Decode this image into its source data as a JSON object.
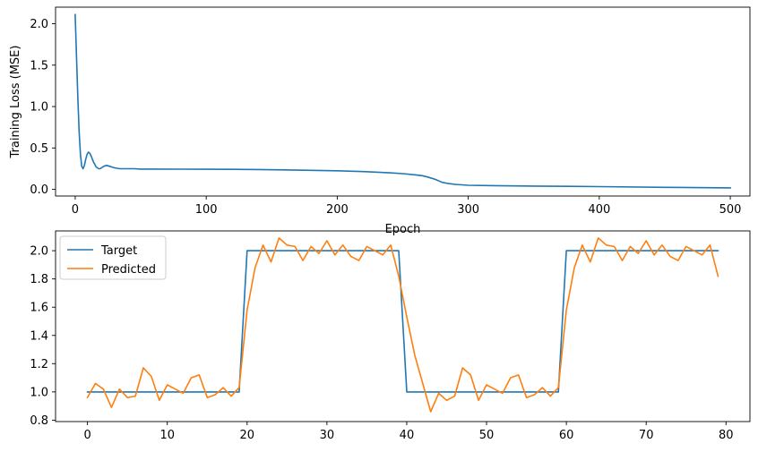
{
  "chart_data": [
    {
      "type": "line",
      "title": "",
      "xlabel": "Epoch",
      "ylabel": "Training Loss (MSE)",
      "xlim": [
        -15,
        515
      ],
      "ylim": [
        -0.08,
        2.2
      ],
      "xticks": [
        0,
        100,
        200,
        300,
        400,
        500
      ],
      "yticks": [
        0.0,
        0.5,
        1.0,
        1.5,
        2.0
      ],
      "xtick_labels": [
        "0",
        "100",
        "200",
        "300",
        "400",
        "500"
      ],
      "ytick_labels": [
        "0.0",
        "0.5",
        "1.0",
        "1.5",
        "2.0"
      ],
      "grid": false,
      "colors": [
        "#1f77b4"
      ],
      "series": [
        {
          "x": [
            0,
            1,
            2,
            3,
            4,
            5,
            6,
            7,
            8,
            9,
            10,
            11,
            12,
            13,
            14,
            15,
            16,
            17,
            18,
            19,
            20,
            22,
            24,
            26,
            28,
            30,
            32,
            34,
            36,
            38,
            40,
            45,
            50,
            60,
            80,
            100,
            120,
            140,
            160,
            180,
            200,
            220,
            240,
            250,
            260,
            265,
            270,
            275,
            280,
            285,
            290,
            300,
            320,
            350,
            400,
            450,
            500
          ],
          "values": [
            2.11,
            1.6,
            1.1,
            0.7,
            0.42,
            0.28,
            0.25,
            0.29,
            0.36,
            0.42,
            0.45,
            0.44,
            0.41,
            0.37,
            0.33,
            0.3,
            0.27,
            0.26,
            0.25,
            0.25,
            0.26,
            0.28,
            0.29,
            0.28,
            0.27,
            0.26,
            0.255,
            0.25,
            0.25,
            0.25,
            0.25,
            0.25,
            0.245,
            0.245,
            0.244,
            0.243,
            0.242,
            0.24,
            0.235,
            0.23,
            0.225,
            0.215,
            0.2,
            0.19,
            0.175,
            0.165,
            0.145,
            0.12,
            0.085,
            0.07,
            0.06,
            0.05,
            0.045,
            0.04,
            0.033,
            0.025,
            0.018
          ]
        }
      ]
    },
    {
      "type": "line",
      "title": "",
      "xlabel": "",
      "ylabel": "",
      "xlim": [
        -4,
        83
      ],
      "ylim": [
        0.79,
        2.14
      ],
      "xticks": [
        0,
        10,
        20,
        30,
        40,
        50,
        60,
        70,
        80
      ],
      "yticks": [
        0.8,
        1.0,
        1.2,
        1.4,
        1.6,
        1.8,
        2.0
      ],
      "xtick_labels": [
        "0",
        "10",
        "20",
        "30",
        "40",
        "50",
        "60",
        "70",
        "80"
      ],
      "ytick_labels": [
        "0.8",
        "1.0",
        "1.2",
        "1.4",
        "1.6",
        "1.8",
        "2.0"
      ],
      "grid": false,
      "legend": "top-left",
      "colors": [
        "#1f77b4",
        "#ff7f0e"
      ],
      "series": [
        {
          "name": "Target",
          "x": [
            0,
            19,
            20,
            39,
            40,
            59,
            60,
            79
          ],
          "values": [
            1.0,
            1.0,
            2.0,
            2.0,
            1.0,
            1.0,
            2.0,
            2.0
          ]
        },
        {
          "name": "Predicted",
          "x": [
            0,
            1,
            2,
            3,
            4,
            5,
            6,
            7,
            8,
            9,
            10,
            11,
            12,
            13,
            14,
            15,
            16,
            17,
            18,
            19,
            20,
            21,
            22,
            23,
            24,
            25,
            26,
            27,
            28,
            29,
            30,
            31,
            32,
            33,
            34,
            35,
            36,
            37,
            38,
            39,
            40,
            41,
            42,
            43,
            44,
            45,
            46,
            47,
            48,
            49,
            50,
            51,
            52,
            53,
            54,
            55,
            56,
            57,
            58,
            59,
            60,
            61,
            62,
            63,
            64,
            65,
            66,
            67,
            68,
            69,
            70,
            71,
            72,
            73,
            74,
            75,
            76,
            77,
            78,
            79
          ],
          "values": [
            0.96,
            1.06,
            1.02,
            0.89,
            1.02,
            0.96,
            0.97,
            1.17,
            1.11,
            0.94,
            1.05,
            1.02,
            0.99,
            1.1,
            1.12,
            0.96,
            0.98,
            1.03,
            0.97,
            1.03,
            1.58,
            1.88,
            2.04,
            1.92,
            2.09,
            2.04,
            2.03,
            1.93,
            2.03,
            1.98,
            2.07,
            1.97,
            2.04,
            1.96,
            1.93,
            2.03,
            2.0,
            1.97,
            2.04,
            1.82,
            1.53,
            1.26,
            1.06,
            0.86,
            0.99,
            0.94,
            0.97,
            1.17,
            1.12,
            0.94,
            1.05,
            1.02,
            0.99,
            1.1,
            1.12,
            0.96,
            0.98,
            1.03,
            0.97,
            1.03,
            1.58,
            1.88,
            2.04,
            1.92,
            2.09,
            2.04,
            2.03,
            1.93,
            2.03,
            1.98,
            2.07,
            1.97,
            2.04,
            1.96,
            1.93,
            2.03,
            2.0,
            1.97,
            2.04,
            1.82
          ]
        }
      ]
    }
  ]
}
